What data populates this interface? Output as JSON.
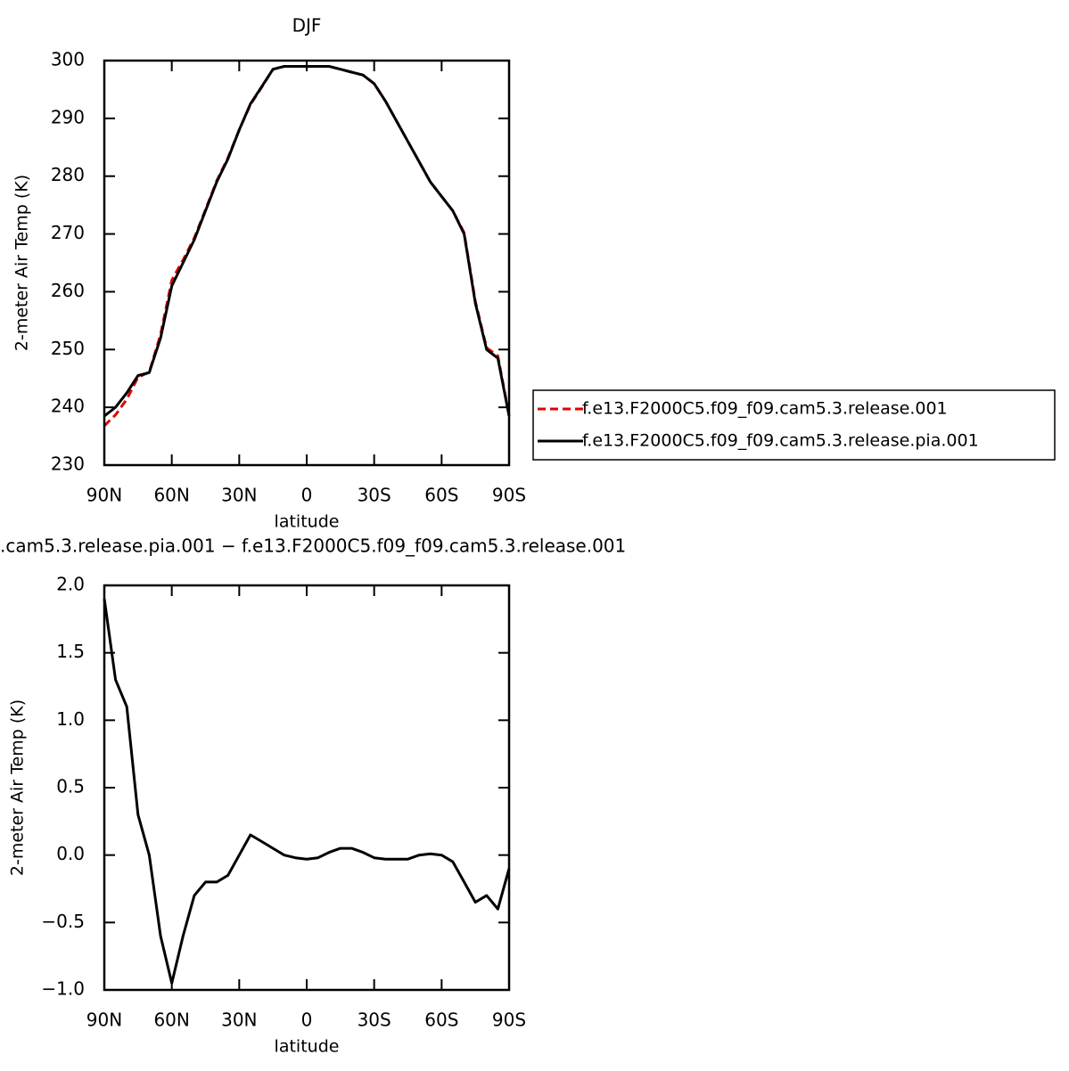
{
  "chart_data": [
    {
      "type": "line",
      "title": "DJF",
      "xlabel": "latitude",
      "ylabel": "2-meter Air Temp (K)",
      "x": [
        90,
        85,
        80,
        75,
        70,
        65,
        60,
        55,
        50,
        45,
        40,
        35,
        30,
        25,
        20,
        15,
        10,
        5,
        0,
        -5,
        -10,
        -15,
        -20,
        -25,
        -30,
        -35,
        -40,
        -45,
        -50,
        -55,
        -60,
        -65,
        -70,
        -75,
        -80,
        -85,
        -90
      ],
      "xlim": [
        90,
        -90
      ],
      "xticks": [
        {
          "value": 90,
          "label": "90N"
        },
        {
          "value": 60,
          "label": "60N"
        },
        {
          "value": 30,
          "label": "30N"
        },
        0,
        {
          "value": -30,
          "label": "30S"
        },
        {
          "value": -60,
          "label": "60S"
        },
        {
          "value": -90,
          "label": "90S"
        }
      ],
      "ylim": [
        230,
        300
      ],
      "yticks": [
        230,
        240,
        250,
        260,
        270,
        280,
        290,
        300
      ],
      "legend": "right",
      "series": [
        {
          "name": "f.e13.F2000C5.f09_f09.cam5.3.release.001",
          "color": "#e00000",
          "dashed": true,
          "values": [
            236.8,
            238.7,
            241.4,
            245.2,
            246.1,
            252.6,
            262,
            265.5,
            269.3,
            274.2,
            279.2,
            283.2,
            288,
            292.4,
            295.4,
            298.5,
            299,
            299,
            299,
            299,
            299,
            298.5,
            298,
            297.5,
            296,
            293,
            289.5,
            286,
            282.5,
            279,
            276.5,
            274,
            270.2,
            258.3,
            250.3,
            248.9,
            238.6
          ]
        },
        {
          "name": "f.e13.F2000C5.f09_f09.cam5.3.release.pia.001",
          "color": "#000000",
          "dashed": false,
          "values": [
            238.5,
            240,
            242.5,
            245.5,
            246,
            252,
            261,
            265,
            269,
            274,
            279,
            283,
            288,
            292.5,
            295.5,
            298.5,
            299,
            299,
            299,
            299,
            299,
            298.5,
            298,
            297.5,
            296,
            293,
            289.5,
            286,
            282.5,
            279,
            276.5,
            274,
            270,
            258,
            250,
            248.5,
            238.5
          ]
        }
      ]
    },
    {
      "type": "line",
      "title": ".cam5.3.release.pia.001 − f.e13.F2000C5.f09_f09.cam5.3.release.001",
      "xlabel": "latitude",
      "ylabel": "2-meter Air Temp (K)",
      "x": [
        90,
        85,
        80,
        75,
        70,
        65,
        60,
        55,
        50,
        45,
        40,
        35,
        30,
        25,
        20,
        15,
        10,
        5,
        0,
        -5,
        -10,
        -15,
        -20,
        -25,
        -30,
        -35,
        -40,
        -45,
        -50,
        -55,
        -60,
        -65,
        -70,
        -75,
        -80,
        -85,
        -90
      ],
      "xlim": [
        90,
        -90
      ],
      "xticks": [
        {
          "value": 90,
          "label": "90N"
        },
        {
          "value": 60,
          "label": "60N"
        },
        {
          "value": 30,
          "label": "30N"
        },
        0,
        {
          "value": -30,
          "label": "30S"
        },
        {
          "value": -60,
          "label": "60S"
        },
        {
          "value": -90,
          "label": "90S"
        }
      ],
      "ylim": [
        -1,
        2
      ],
      "yticks": [
        {
          "value": -1,
          "label": "−1.0"
        },
        {
          "value": -0.5,
          "label": "−0.5"
        },
        {
          "value": 0,
          "label": "0.0"
        },
        {
          "value": 0.5,
          "label": "0.5"
        },
        {
          "value": 1,
          "label": "1.0"
        },
        {
          "value": 1.5,
          "label": "1.5"
        },
        {
          "value": 2,
          "label": "2.0"
        }
      ],
      "series": [
        {
          "color": "#000000",
          "dashed": false,
          "values": [
            1.9,
            1.3,
            1.1,
            0.3,
            0.0,
            -0.6,
            -0.95,
            -0.6,
            -0.3,
            -0.2,
            -0.2,
            -0.15,
            0.0,
            0.15,
            0.1,
            0.05,
            0.0,
            -0.02,
            -0.03,
            -0.02,
            0.02,
            0.05,
            0.05,
            0.02,
            -0.02,
            -0.03,
            -0.03,
            -0.03,
            0.0,
            0.01,
            0.0,
            -0.05,
            -0.2,
            -0.35,
            -0.3,
            -0.4,
            -0.1
          ]
        }
      ]
    }
  ]
}
